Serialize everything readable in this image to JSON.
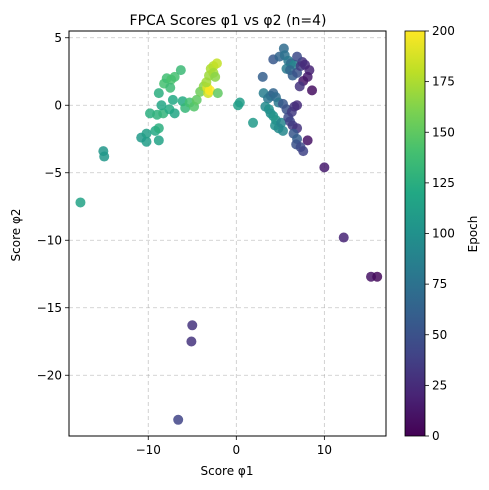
{
  "chart_data": {
    "type": "scatter",
    "title": "FPCA Scores φ1 vs φ2 (n=4)",
    "xlabel": "Score φ1",
    "ylabel": "Score φ2",
    "xlim": [
      -19,
      17
    ],
    "ylim": [
      -24.5,
      5.5
    ],
    "xticks": [
      -10,
      0,
      10
    ],
    "xtick_labels": [
      "−10",
      "0",
      "10"
    ],
    "yticks": [
      5,
      0,
      -5,
      -10,
      -15,
      -20
    ],
    "ytick_labels": [
      "5",
      "0",
      "−5",
      "−10",
      "−15",
      "−20"
    ],
    "grid": true,
    "colorbar": {
      "label": "Epoch",
      "min": 0,
      "max": 200,
      "ticks": [
        0,
        25,
        50,
        75,
        100,
        125,
        150,
        175,
        200
      ],
      "tick_labels": [
        "0",
        "25",
        "50",
        "75",
        "100",
        "125",
        "150",
        "175",
        "200"
      ],
      "colormap": "viridis"
    },
    "points": [
      {
        "x": -6.6,
        "y": -23.3,
        "epoch": 40
      },
      {
        "x": -5.0,
        "y": -16.3,
        "epoch": 30
      },
      {
        "x": -5.1,
        "y": -17.5,
        "epoch": 30
      },
      {
        "x": 12.2,
        "y": -9.8,
        "epoch": 20
      },
      {
        "x": 15.3,
        "y": -12.7,
        "epoch": 10
      },
      {
        "x": 16.0,
        "y": -12.7,
        "epoch": 5
      },
      {
        "x": 10.0,
        "y": -4.6,
        "epoch": 15
      },
      {
        "x": -17.7,
        "y": -7.2,
        "epoch": 115
      },
      {
        "x": -15.1,
        "y": -3.4,
        "epoch": 105
      },
      {
        "x": -15.0,
        "y": -3.8,
        "epoch": 105
      },
      {
        "x": -10.2,
        "y": -2.7,
        "epoch": 110
      },
      {
        "x": -10.8,
        "y": -2.4,
        "epoch": 108
      },
      {
        "x": -10.2,
        "y": -2.1,
        "epoch": 112
      },
      {
        "x": -8.8,
        "y": -2.6,
        "epoch": 115
      },
      {
        "x": -9.2,
        "y": -1.9,
        "epoch": 120
      },
      {
        "x": -8.8,
        "y": -1.7,
        "epoch": 125
      },
      {
        "x": -9.8,
        "y": -0.6,
        "epoch": 125
      },
      {
        "x": -9.0,
        "y": -0.7,
        "epoch": 128
      },
      {
        "x": -8.3,
        "y": -0.6,
        "epoch": 130
      },
      {
        "x": -7.6,
        "y": -0.3,
        "epoch": 122
      },
      {
        "x": -8.5,
        "y": 0.0,
        "epoch": 118
      },
      {
        "x": -8.8,
        "y": 0.9,
        "epoch": 125
      },
      {
        "x": -7.2,
        "y": 0.4,
        "epoch": 120
      },
      {
        "x": -7.0,
        "y": -0.6,
        "epoch": 118
      },
      {
        "x": -6.1,
        "y": 0.3,
        "epoch": 122
      },
      {
        "x": -5.8,
        "y": -0.2,
        "epoch": 132
      },
      {
        "x": -5.3,
        "y": 0.2,
        "epoch": 140
      },
      {
        "x": -4.8,
        "y": -0.1,
        "epoch": 145
      },
      {
        "x": -4.5,
        "y": 0.4,
        "epoch": 150
      },
      {
        "x": -8.2,
        "y": 1.6,
        "epoch": 140
      },
      {
        "x": -7.9,
        "y": 2.0,
        "epoch": 138
      },
      {
        "x": -7.4,
        "y": 1.9,
        "epoch": 142
      },
      {
        "x": -7.0,
        "y": 2.1,
        "epoch": 140
      },
      {
        "x": -7.5,
        "y": 1.3,
        "epoch": 136
      },
      {
        "x": -6.3,
        "y": 2.6,
        "epoch": 135
      },
      {
        "x": -4.1,
        "y": 1.0,
        "epoch": 155
      },
      {
        "x": -3.7,
        "y": 1.4,
        "epoch": 165
      },
      {
        "x": -3.3,
        "y": 1.3,
        "epoch": 190
      },
      {
        "x": -3.2,
        "y": 0.9,
        "epoch": 185
      },
      {
        "x": -3.0,
        "y": 1.1,
        "epoch": 200
      },
      {
        "x": -3.4,
        "y": 1.7,
        "epoch": 172
      },
      {
        "x": -3.1,
        "y": 2.2,
        "epoch": 170
      },
      {
        "x": -2.9,
        "y": 2.7,
        "epoch": 175
      },
      {
        "x": -2.6,
        "y": 2.9,
        "epoch": 178
      },
      {
        "x": -2.2,
        "y": 3.1,
        "epoch": 182
      },
      {
        "x": -2.6,
        "y": 2.4,
        "epoch": 172
      },
      {
        "x": -2.4,
        "y": 2.1,
        "epoch": 165
      },
      {
        "x": -2.1,
        "y": 0.9,
        "epoch": 150
      },
      {
        "x": 0.2,
        "y": 0.0,
        "epoch": 112
      },
      {
        "x": 0.4,
        "y": 0.2,
        "epoch": 110
      },
      {
        "x": 1.9,
        "y": -1.3,
        "epoch": 108
      },
      {
        "x": 3.0,
        "y": 2.1,
        "epoch": 60
      },
      {
        "x": 3.1,
        "y": 0.9,
        "epoch": 85
      },
      {
        "x": 3.6,
        "y": 0.5,
        "epoch": 80
      },
      {
        "x": 3.9,
        "y": 0.7,
        "epoch": 75
      },
      {
        "x": 4.2,
        "y": 0.9,
        "epoch": 65
      },
      {
        "x": 4.5,
        "y": 0.6,
        "epoch": 70
      },
      {
        "x": 3.3,
        "y": -0.1,
        "epoch": 95
      },
      {
        "x": 3.7,
        "y": -0.3,
        "epoch": 100
      },
      {
        "x": 3.9,
        "y": -0.6,
        "epoch": 98
      },
      {
        "x": 4.2,
        "y": -0.8,
        "epoch": 102
      },
      {
        "x": 4.5,
        "y": -1.1,
        "epoch": 104
      },
      {
        "x": 4.4,
        "y": -1.5,
        "epoch": 100
      },
      {
        "x": 4.8,
        "y": -1.7,
        "epoch": 96
      },
      {
        "x": 5.1,
        "y": -1.3,
        "epoch": 90
      },
      {
        "x": 5.3,
        "y": -1.9,
        "epoch": 92
      },
      {
        "x": 4.8,
        "y": 0.2,
        "epoch": 80
      },
      {
        "x": 5.3,
        "y": 0.1,
        "epoch": 55
      },
      {
        "x": 5.7,
        "y": -0.3,
        "epoch": 50
      },
      {
        "x": 5.9,
        "y": -0.9,
        "epoch": 45
      },
      {
        "x": 6.1,
        "y": -1.2,
        "epoch": 40
      },
      {
        "x": 6.4,
        "y": -1.5,
        "epoch": 35
      },
      {
        "x": 6.9,
        "y": -1.7,
        "epoch": 30
      },
      {
        "x": 6.5,
        "y": -2.1,
        "epoch": 55
      },
      {
        "x": 6.9,
        "y": -2.5,
        "epoch": 60
      },
      {
        "x": 6.8,
        "y": -2.9,
        "epoch": 50
      },
      {
        "x": 7.3,
        "y": -3.1,
        "epoch": 45
      },
      {
        "x": 7.6,
        "y": -3.4,
        "epoch": 40
      },
      {
        "x": 8.1,
        "y": -2.6,
        "epoch": 10
      },
      {
        "x": 6.3,
        "y": -0.5,
        "epoch": 35
      },
      {
        "x": 6.6,
        "y": -0.1,
        "epoch": 30
      },
      {
        "x": 6.9,
        "y": 0.0,
        "epoch": 25
      },
      {
        "x": 4.2,
        "y": 3.4,
        "epoch": 55
      },
      {
        "x": 4.9,
        "y": 3.6,
        "epoch": 65
      },
      {
        "x": 5.4,
        "y": 4.2,
        "epoch": 70
      },
      {
        "x": 5.5,
        "y": 3.7,
        "epoch": 75
      },
      {
        "x": 5.9,
        "y": 3.3,
        "epoch": 80
      },
      {
        "x": 6.2,
        "y": 3.1,
        "epoch": 70
      },
      {
        "x": 6.6,
        "y": 3.0,
        "epoch": 90
      },
      {
        "x": 5.7,
        "y": 2.7,
        "epoch": 82
      },
      {
        "x": 6.1,
        "y": 2.6,
        "epoch": 68
      },
      {
        "x": 6.4,
        "y": 2.2,
        "epoch": 60
      },
      {
        "x": 6.9,
        "y": 2.4,
        "epoch": 50
      },
      {
        "x": 7.3,
        "y": 2.9,
        "epoch": 35
      },
      {
        "x": 7.5,
        "y": 3.2,
        "epoch": 30
      },
      {
        "x": 7.8,
        "y": 3.0,
        "epoch": 25
      },
      {
        "x": 8.3,
        "y": 2.6,
        "epoch": 20
      },
      {
        "x": 8.1,
        "y": 2.1,
        "epoch": 15
      },
      {
        "x": 7.6,
        "y": 1.8,
        "epoch": 12
      },
      {
        "x": 8.6,
        "y": 1.1,
        "epoch": 8
      },
      {
        "x": 7.2,
        "y": 1.4,
        "epoch": 30
      },
      {
        "x": 6.9,
        "y": 3.6,
        "epoch": 45
      }
    ]
  }
}
